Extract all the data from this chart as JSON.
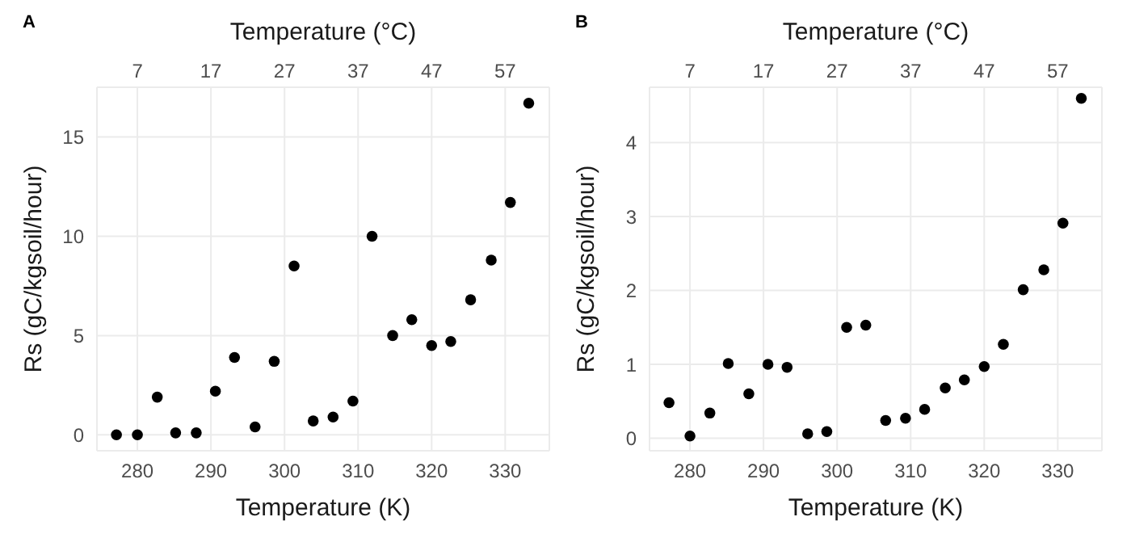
{
  "chart_data": [
    {
      "type": "scatter",
      "title": "A",
      "xlabel": "Temperature (K)",
      "ylabel": "Rs (gC/kgsoil/hour)",
      "x2label": "Temperature (°C)",
      "x": [
        277.15,
        280,
        282.7,
        285.2,
        288,
        290.6,
        293.2,
        296,
        298.6,
        301.3,
        303.9,
        306.6,
        309.3,
        311.9,
        314.7,
        317.3,
        320,
        322.6,
        325.3,
        328.1,
        330.7,
        333.2
      ],
      "series": [
        {
          "color": "#000000",
          "values": [
            0,
            0,
            1.9,
            0.1,
            0.1,
            2.2,
            3.9,
            0.4,
            3.7,
            8.5,
            0.7,
            0.9,
            1.7,
            10.0,
            5.0,
            5.8,
            4.5,
            4.7,
            6.8,
            8.8,
            11.7,
            16.7
          ]
        }
      ],
      "xlim": [
        274.5,
        336
      ],
      "xticks": [
        280,
        290,
        300,
        310,
        320,
        330
      ],
      "x2lim": [
        1.5,
        63
      ],
      "x2ticks": [
        7,
        17,
        27,
        37,
        47,
        57
      ],
      "ylim": [
        -0.8,
        17.5
      ],
      "yticks": [
        0,
        5,
        10,
        15
      ],
      "grid": true,
      "marker": "circle"
    },
    {
      "type": "scatter",
      "title": "B",
      "xlabel": "Temperature (K)",
      "ylabel": "Rs (gC/kgsoil/hour)",
      "x2label": "Temperature (°C)",
      "x": [
        277.15,
        280,
        282.7,
        285.2,
        288,
        290.6,
        293.2,
        296,
        298.6,
        301.3,
        303.9,
        306.6,
        309.3,
        311.9,
        314.7,
        317.3,
        320,
        322.6,
        325.3,
        328.1,
        330.7,
        333.2
      ],
      "series": [
        {
          "color": "#000000",
          "values": [
            0.48,
            0.03,
            0.34,
            1.01,
            0.6,
            1.0,
            0.96,
            0.06,
            0.09,
            1.5,
            1.53,
            0.24,
            0.27,
            0.39,
            0.68,
            0.79,
            0.97,
            1.27,
            2.01,
            2.28,
            2.91,
            4.6
          ]
        }
      ],
      "xlim": [
        274.5,
        336
      ],
      "xticks": [
        280,
        290,
        300,
        310,
        320,
        330
      ],
      "x2lim": [
        1.5,
        63
      ],
      "x2ticks": [
        7,
        17,
        27,
        37,
        47,
        57
      ],
      "ylim": [
        -0.17,
        4.75
      ],
      "yticks": [
        0,
        1,
        2,
        3,
        4
      ],
      "grid": true,
      "marker": "circle"
    }
  ]
}
